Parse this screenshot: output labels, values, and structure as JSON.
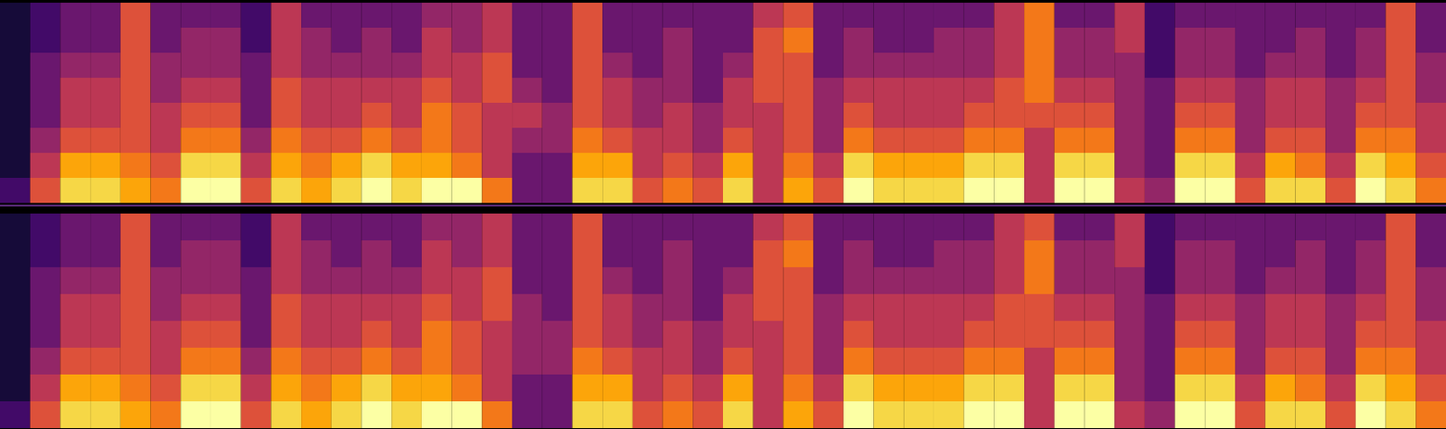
{
  "chart_data": [
    {
      "type": "heatmap",
      "tick_labels": false,
      "zlim": [
        0,
        10
      ],
      "cells": [
        [
          2,
          1,
          1,
          1,
          1,
          1,
          1,
          1
        ],
        [
          6,
          5,
          4,
          3,
          3,
          3,
          2,
          2
        ],
        [
          9,
          8,
          6,
          5,
          5,
          4,
          3,
          3
        ],
        [
          9,
          8,
          6,
          5,
          5,
          4,
          3,
          3
        ],
        [
          8,
          7,
          6,
          6,
          6,
          6,
          6,
          6
        ],
        [
          7,
          6,
          5,
          5,
          4,
          4,
          3,
          3
        ],
        [
          10,
          9,
          7,
          6,
          5,
          4,
          4,
          3
        ],
        [
          10,
          9,
          7,
          6,
          5,
          4,
          4,
          3
        ],
        [
          6,
          5,
          4,
          3,
          3,
          3,
          2,
          2
        ],
        [
          9,
          8,
          7,
          6,
          6,
          5,
          5,
          5
        ],
        [
          8,
          7,
          6,
          5,
          5,
          4,
          4,
          3
        ],
        [
          9,
          8,
          6,
          5,
          5,
          4,
          3,
          3
        ],
        [
          10,
          9,
          7,
          6,
          5,
          4,
          4,
          3
        ],
        [
          9,
          8,
          6,
          5,
          5,
          4,
          3,
          3
        ],
        [
          10,
          8,
          7,
          7,
          6,
          5,
          5,
          4
        ],
        [
          10,
          7,
          6,
          6,
          5,
          5,
          4,
          4
        ],
        [
          7,
          5,
          5,
          5,
          6,
          6,
          5,
          5
        ],
        [
          3,
          3,
          4,
          5,
          4,
          3,
          3,
          3
        ],
        [
          3,
          3,
          4,
          4,
          3,
          3,
          3,
          3
        ],
        [
          9,
          8,
          7,
          6,
          6,
          6,
          6,
          6
        ],
        [
          9,
          8,
          6,
          5,
          5,
          4,
          3,
          3
        ],
        [
          6,
          5,
          5,
          4,
          4,
          3,
          3,
          3
        ],
        [
          7,
          6,
          5,
          5,
          4,
          4,
          4,
          3
        ],
        [
          6,
          5,
          4,
          4,
          3,
          3,
          3,
          3
        ],
        [
          9,
          8,
          6,
          5,
          5,
          4,
          3,
          3
        ],
        [
          5,
          5,
          5,
          5,
          6,
          6,
          6,
          5
        ],
        [
          8,
          7,
          6,
          6,
          6,
          6,
          7,
          6
        ],
        [
          6,
          5,
          4,
          4,
          4,
          3,
          3,
          3
        ],
        [
          10,
          9,
          7,
          6,
          5,
          4,
          4,
          3
        ],
        [
          9,
          8,
          6,
          5,
          5,
          4,
          3,
          3
        ],
        [
          9,
          8,
          6,
          5,
          5,
          4,
          3,
          3
        ],
        [
          9,
          8,
          6,
          5,
          5,
          4,
          4,
          3
        ],
        [
          10,
          9,
          7,
          6,
          5,
          4,
          4,
          3
        ],
        [
          10,
          9,
          7,
          6,
          6,
          5,
          5,
          5
        ],
        [
          5,
          5,
          5,
          6,
          7,
          7,
          7,
          7
        ],
        [
          10,
          9,
          7,
          6,
          5,
          4,
          4,
          3
        ],
        [
          10,
          9,
          7,
          6,
          5,
          4,
          4,
          3
        ],
        [
          5,
          4,
          4,
          4,
          4,
          4,
          5,
          5
        ],
        [
          4,
          3,
          3,
          3,
          3,
          2,
          2,
          2
        ],
        [
          10,
          9,
          7,
          6,
          5,
          4,
          4,
          3
        ],
        [
          10,
          9,
          7,
          6,
          5,
          4,
          4,
          3
        ],
        [
          6,
          5,
          4,
          4,
          4,
          3,
          3,
          3
        ],
        [
          9,
          8,
          6,
          5,
          5,
          4,
          3,
          3
        ],
        [
          9,
          7,
          6,
          5,
          5,
          4,
          4,
          3
        ],
        [
          6,
          5,
          4,
          4,
          4,
          3,
          3,
          3
        ],
        [
          10,
          9,
          7,
          6,
          5,
          4,
          4,
          3
        ],
        [
          9,
          8,
          7,
          6,
          6,
          6,
          6,
          6
        ],
        [
          7,
          6,
          5,
          5,
          4,
          4,
          3,
          3
        ]
      ]
    },
    {
      "type": "heatmap",
      "tick_labels": false,
      "zlim": [
        0,
        10
      ],
      "cells": [
        [
          2,
          1,
          1,
          1,
          1,
          1,
          1,
          1
        ],
        [
          6,
          5,
          4,
          3,
          3,
          3,
          2,
          2
        ],
        [
          9,
          8,
          6,
          5,
          5,
          4,
          3,
          3
        ],
        [
          9,
          8,
          6,
          5,
          5,
          4,
          3,
          3
        ],
        [
          8,
          7,
          6,
          6,
          6,
          6,
          6,
          6
        ],
        [
          7,
          6,
          5,
          5,
          4,
          4,
          3,
          3
        ],
        [
          10,
          9,
          7,
          6,
          5,
          4,
          4,
          3
        ],
        [
          10,
          9,
          7,
          6,
          5,
          4,
          4,
          3
        ],
        [
          6,
          5,
          4,
          3,
          3,
          3,
          2,
          2
        ],
        [
          9,
          8,
          7,
          6,
          6,
          5,
          5,
          5
        ],
        [
          8,
          7,
          6,
          5,
          5,
          4,
          4,
          3
        ],
        [
          9,
          8,
          6,
          5,
          5,
          4,
          3,
          3
        ],
        [
          10,
          9,
          7,
          6,
          5,
          4,
          4,
          3
        ],
        [
          9,
          8,
          6,
          5,
          5,
          4,
          3,
          3
        ],
        [
          10,
          8,
          7,
          7,
          6,
          5,
          5,
          4
        ],
        [
          10,
          7,
          6,
          6,
          5,
          5,
          4,
          4
        ],
        [
          7,
          5,
          5,
          5,
          6,
          6,
          5,
          5
        ],
        [
          3,
          3,
          4,
          4,
          4,
          3,
          3,
          3
        ],
        [
          3,
          3,
          4,
          4,
          3,
          3,
          3,
          3
        ],
        [
          9,
          8,
          7,
          6,
          6,
          6,
          6,
          6
        ],
        [
          9,
          8,
          6,
          5,
          5,
          4,
          3,
          3
        ],
        [
          6,
          5,
          5,
          4,
          4,
          3,
          3,
          3
        ],
        [
          7,
          6,
          5,
          5,
          4,
          4,
          4,
          3
        ],
        [
          6,
          5,
          4,
          4,
          3,
          3,
          3,
          3
        ],
        [
          9,
          8,
          6,
          5,
          5,
          4,
          3,
          3
        ],
        [
          5,
          5,
          5,
          5,
          6,
          6,
          6,
          5
        ],
        [
          8,
          7,
          6,
          6,
          6,
          6,
          7,
          6
        ],
        [
          6,
          5,
          4,
          4,
          4,
          3,
          3,
          3
        ],
        [
          10,
          9,
          7,
          6,
          5,
          4,
          4,
          3
        ],
        [
          9,
          8,
          6,
          5,
          5,
          4,
          3,
          3
        ],
        [
          9,
          8,
          6,
          5,
          5,
          4,
          3,
          3
        ],
        [
          9,
          8,
          6,
          5,
          5,
          4,
          4,
          3
        ],
        [
          10,
          9,
          7,
          6,
          5,
          4,
          4,
          3
        ],
        [
          10,
          9,
          7,
          6,
          6,
          5,
          5,
          5
        ],
        [
          5,
          5,
          5,
          6,
          6,
          7,
          7,
          6
        ],
        [
          10,
          9,
          7,
          6,
          5,
          4,
          4,
          3
        ],
        [
          10,
          9,
          7,
          6,
          5,
          4,
          4,
          3
        ],
        [
          5,
          4,
          4,
          4,
          4,
          4,
          5,
          5
        ],
        [
          4,
          3,
          3,
          3,
          3,
          2,
          2,
          2
        ],
        [
          10,
          9,
          7,
          6,
          5,
          4,
          4,
          3
        ],
        [
          10,
          9,
          7,
          6,
          5,
          4,
          4,
          3
        ],
        [
          6,
          5,
          4,
          4,
          4,
          3,
          3,
          3
        ],
        [
          9,
          8,
          6,
          5,
          5,
          4,
          3,
          3
        ],
        [
          9,
          7,
          6,
          5,
          5,
          4,
          4,
          3
        ],
        [
          6,
          5,
          4,
          4,
          4,
          3,
          3,
          3
        ],
        [
          10,
          9,
          7,
          6,
          5,
          4,
          4,
          3
        ],
        [
          9,
          8,
          7,
          6,
          6,
          6,
          6,
          6
        ],
        [
          7,
          6,
          5,
          5,
          4,
          4,
          3,
          3
        ]
      ]
    }
  ]
}
